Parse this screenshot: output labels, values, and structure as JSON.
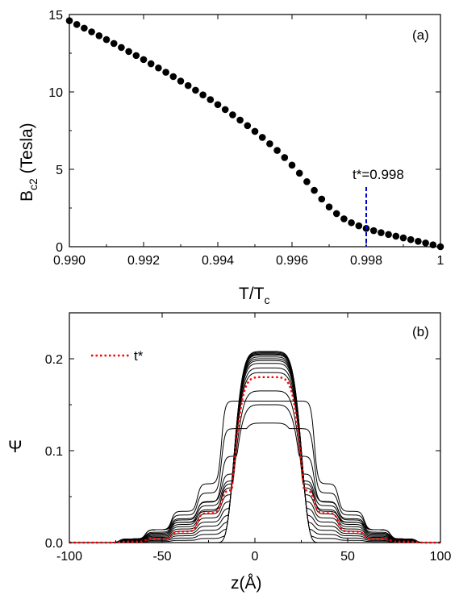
{
  "chart_data": [
    {
      "panel": "(a)",
      "type": "scatter",
      "xlabel_main": "T/T",
      "xlabel_sub": "c",
      "ylabel_main": "B",
      "ylabel_sub": "c2",
      "ylabel_rest": " (Tesla)",
      "xlim": [
        0.99,
        1.0
      ],
      "ylim": [
        0,
        15
      ],
      "xticks": [
        0.99,
        0.992,
        0.994,
        0.996,
        0.998,
        1.0
      ],
      "xtick_labels": [
        "0.990",
        "0.992",
        "0.994",
        "0.996",
        "0.998",
        "1"
      ],
      "yticks": [
        0,
        5,
        10,
        15
      ],
      "ytick_labels": [
        "0",
        "5",
        "10",
        "15"
      ],
      "series": [
        {
          "marker": "filled-circle",
          "color": "#000000",
          "x": [
            0.99,
            0.9902,
            0.9904,
            0.9906,
            0.9908,
            0.991,
            0.9912,
            0.9914,
            0.9916,
            0.9918,
            0.992,
            0.9922,
            0.9924,
            0.9926,
            0.9928,
            0.993,
            0.9932,
            0.9934,
            0.9936,
            0.9938,
            0.994,
            0.9942,
            0.9944,
            0.9946,
            0.9948,
            0.995,
            0.9952,
            0.9954,
            0.9956,
            0.9958,
            0.996,
            0.9962,
            0.9964,
            0.9966,
            0.9968,
            0.997,
            0.9972,
            0.9974,
            0.9976,
            0.9978,
            0.998,
            0.9982,
            0.9984,
            0.9986,
            0.9988,
            0.999,
            0.9992,
            0.9994,
            0.9996,
            0.9998,
            1.0
          ],
          "y": [
            14.6,
            14.36,
            14.12,
            13.88,
            13.63,
            13.38,
            13.13,
            12.87,
            12.61,
            12.35,
            12.09,
            11.82,
            11.55,
            11.27,
            10.99,
            10.7,
            10.41,
            10.11,
            9.81,
            9.5,
            9.18,
            8.86,
            8.52,
            8.18,
            7.82,
            7.45,
            7.06,
            6.65,
            6.22,
            5.76,
            5.27,
            4.75,
            4.2,
            3.64,
            3.08,
            2.57,
            2.14,
            1.8,
            1.55,
            1.35,
            1.18,
            1.04,
            0.91,
            0.79,
            0.68,
            0.57,
            0.46,
            0.35,
            0.24,
            0.12,
            0.0
          ]
        }
      ],
      "annotation": {
        "text": "t*=0.998",
        "marker_x": 0.998,
        "line_color": "#0000cc",
        "line_style": "dashed"
      },
      "grid": false
    },
    {
      "panel": "(b)",
      "type": "line",
      "xlabel": "z(Å)",
      "ylabel": "Ψ",
      "xlim": [
        -100,
        100
      ],
      "ylim": [
        0,
        0.25
      ],
      "xticks": [
        -100,
        -50,
        0,
        50,
        100
      ],
      "xtick_labels": [
        "-100",
        "-50",
        "0",
        "50",
        "100"
      ],
      "yticks": [
        0.0,
        0.1,
        0.2
      ],
      "ytick_labels": [
        "0.0",
        "0.1",
        "0.2"
      ],
      "legend": {
        "entries": [
          {
            "name": "t*",
            "color": "#ff0000",
            "style": "dotted"
          }
        ],
        "placement": "top-left"
      },
      "profile_family": {
        "description_color": "#000000",
        "center": 7,
        "peak_heights": [
          0.1,
          0.13,
          0.15,
          0.165,
          0.185,
          0.19,
          0.195,
          0.198,
          0.2,
          0.202,
          0.204,
          0.205,
          0.206,
          0.207,
          0.208
        ],
        "shoulder_levels": [
          0.0,
          0.001,
          0.003,
          0.006,
          0.01,
          0.015,
          0.02,
          0.03
        ],
        "highlight": {
          "peak": 0.18,
          "color": "#ff0000",
          "style": "dotted"
        }
      },
      "grid": false
    }
  ]
}
